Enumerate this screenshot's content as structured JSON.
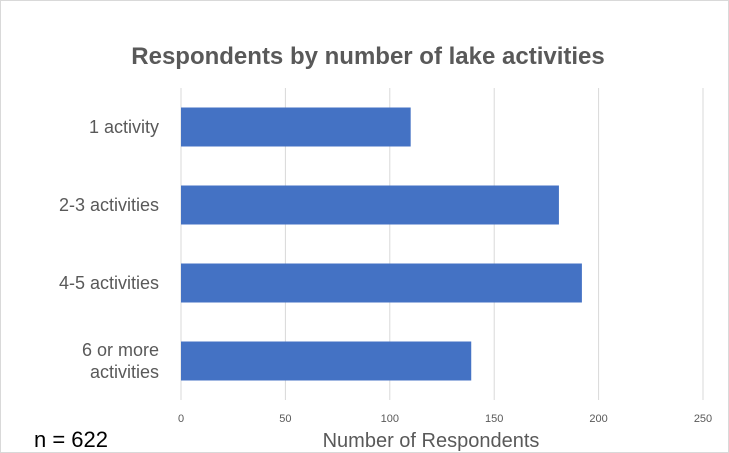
{
  "chart_data": {
    "type": "bar",
    "orientation": "horizontal",
    "title": "Respondents by number of lake activities",
    "categories": [
      "1 activity",
      "2-3 activities",
      "4-5 activities",
      "6 or more activities"
    ],
    "category_lines": [
      [
        "1 activity"
      ],
      [
        "2-3 activities"
      ],
      [
        "4-5 activities"
      ],
      [
        "6 or more",
        "activities"
      ]
    ],
    "values": [
      110,
      181,
      192,
      139
    ],
    "xlabel": "Number of Respondents",
    "ylabel": "",
    "xlim": [
      0,
      250
    ],
    "xticks": [
      0,
      50,
      100,
      150,
      200,
      250
    ],
    "grid": true,
    "legend": "none",
    "bar_color": "#4472C4"
  },
  "note": "n = 622"
}
